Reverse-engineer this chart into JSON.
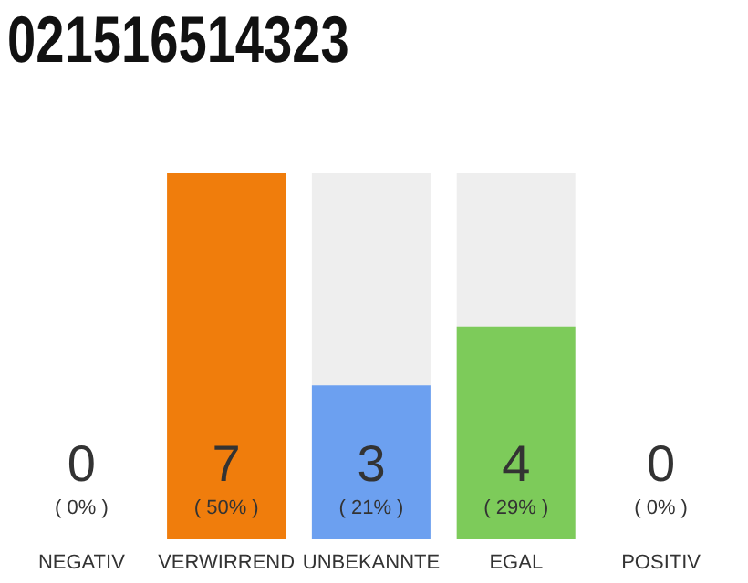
{
  "chart_data": {
    "type": "bar",
    "title": "021516514323",
    "categories": [
      "NEGATIV",
      "VERWIRREND",
      "UNBEKANNTE",
      "EGAL",
      "POSITIV"
    ],
    "values": [
      0,
      50,
      21,
      29,
      0
    ],
    "colors": [
      "#999999",
      "#f07d0c",
      "#6ca0f0",
      "#7dcb5a",
      "#999999"
    ],
    "value_labels": [
      "( 0% )",
      "( 50% )",
      "( 21% )",
      "( 29% )",
      "( 0% )"
    ],
    "annotations": [
      "0",
      "7",
      "3",
      "4",
      "0"
    ]
  }
}
